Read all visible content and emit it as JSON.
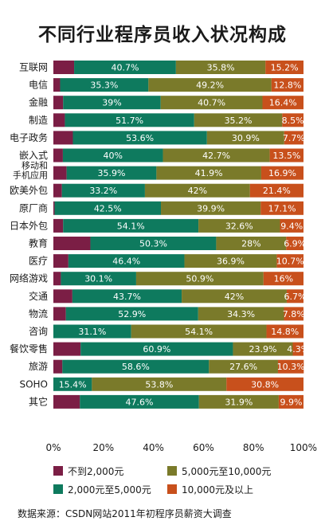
{
  "title": "不同行业程序员收入状况构成",
  "source": "数据来源：CSDN网站2011年初程序员薪资大调查",
  "colors": [
    "#7b1e45",
    "#0e7a5e",
    "#7a7a2a",
    "#c8501c"
  ],
  "chart_data": {
    "type": "bar",
    "orientation": "horizontal",
    "stacked": true,
    "normalized": true,
    "xlim": [
      0,
      100
    ],
    "xticks": [
      "0%",
      "20%",
      "40%",
      "60%",
      "80%",
      "100%"
    ],
    "categories": [
      [
        "互联网"
      ],
      [
        "电信"
      ],
      [
        "金融"
      ],
      [
        "制造"
      ],
      [
        "电子政务"
      ],
      [
        "嵌入式"
      ],
      [
        "移动和",
        "手机应用"
      ],
      [
        "欧美外包"
      ],
      [
        "原厂商"
      ],
      [
        "日本外包"
      ],
      [
        "教育"
      ],
      [
        "医疗"
      ],
      [
        "网络游戏"
      ],
      [
        "交通"
      ],
      [
        "物流"
      ],
      [
        "咨询"
      ],
      [
        "餐饮零售"
      ],
      [
        "旅游"
      ],
      [
        "SOHO"
      ],
      [
        "其它"
      ]
    ],
    "series": [
      {
        "name": "不到2,000元",
        "values": [
          8.3,
          2.7,
          3.9,
          4.6,
          7.8,
          3.8,
          5.3,
          3.4,
          0.5,
          3.9,
          14.8,
          6.0,
          3.0,
          7.6,
          5.0,
          0.0,
          10.9,
          3.6,
          0.0,
          10.6
        ],
        "labels": [
          "",
          "",
          "",
          "",
          "",
          "",
          "",
          "",
          "",
          "",
          "",
          "",
          "",
          "",
          "",
          "",
          "",
          "",
          "",
          ""
        ]
      },
      {
        "name": "2,000元至5,000元",
        "values": [
          40.7,
          35.3,
          39,
          51.7,
          53.6,
          40,
          35.9,
          33.2,
          42.5,
          54.1,
          50.3,
          46.4,
          30.1,
          43.7,
          52.9,
          31.1,
          60.9,
          58.6,
          15.4,
          47.6
        ],
        "labels": [
          "40.7%",
          "35.3%",
          "39%",
          "51.7%",
          "53.6%",
          "40%",
          "35.9%",
          "33.2%",
          "42.5%",
          "54.1%",
          "50.3%",
          "46.4%",
          "30.1%",
          "43.7%",
          "52.9%",
          "31.1%",
          "60.9%",
          "58.6%",
          "15.4%",
          "47.6%"
        ]
      },
      {
        "name": "5,000元至10,000元",
        "values": [
          35.8,
          49.2,
          40.7,
          35.2,
          30.9,
          42.7,
          41.9,
          42,
          39.9,
          32.6,
          28,
          36.9,
          50.9,
          42,
          34.3,
          54.1,
          23.9,
          27.6,
          53.8,
          31.9
        ],
        "labels": [
          "35.8%",
          "49.2%",
          "40.7%",
          "35.2%",
          "30.9%",
          "42.7%",
          "41.9%",
          "42%",
          "39.9%",
          "32.6%",
          "28%",
          "36.9%",
          "50.9%",
          "42%",
          "34.3%",
          "54.1%",
          "23.9%",
          "27.6%",
          "53.8%",
          "31.9%"
        ]
      },
      {
        "name": "10,000元及以上",
        "values": [
          15.2,
          12.8,
          16.4,
          8.5,
          7.7,
          13.5,
          16.9,
          21.4,
          17.1,
          9.4,
          6.9,
          10.7,
          16,
          6.7,
          7.8,
          14.8,
          4.3,
          10.3,
          30.8,
          9.9
        ],
        "labels": [
          "15.2%",
          "12.8%",
          "16.4%",
          "8.5%",
          "7.7%",
          "13.5%",
          "16.9%",
          "21.4%",
          "17.1%",
          "9.4%",
          "6.9%",
          "10.7%",
          "16%",
          "6.7%",
          "7.8%",
          "14.8%",
          "4.3%",
          "10.3%",
          "30.8%",
          "9.9%"
        ]
      }
    ],
    "legend_position": "bottom"
  }
}
